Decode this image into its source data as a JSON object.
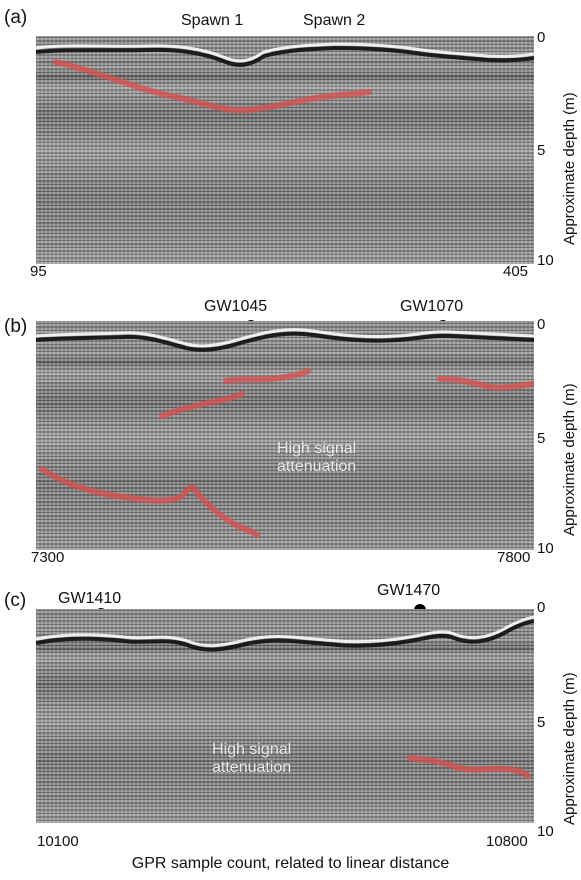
{
  "figure": {
    "panels": [
      {
        "label": "(a)",
        "markers": [
          "Spawn 1",
          "Spawn 2"
        ],
        "x_ticks": [
          "95",
          "405"
        ],
        "depth_ticks": [
          "0",
          "5",
          "10"
        ],
        "depth_axis_title": "Approximate depth (m)",
        "annotations": []
      },
      {
        "label": "(b)",
        "markers": [
          "GW1045",
          "GW1070"
        ],
        "x_ticks": [
          "7300",
          "7800"
        ],
        "depth_ticks": [
          "0",
          "5",
          "10"
        ],
        "depth_axis_title": "Approximate depth (m)",
        "annotations": [
          "High signal",
          "attenuation"
        ]
      },
      {
        "label": "(c)",
        "markers": [
          "GW1410",
          "GW1470"
        ],
        "x_ticks": [
          "10100",
          "10800"
        ],
        "depth_ticks": [
          "0",
          "5",
          "10"
        ],
        "depth_axis_title": "Approximate depth (m)",
        "annotations": [
          "High signal",
          "attenuation"
        ]
      }
    ],
    "x_axis_title": "GPR sample count, related to linear distance",
    "colors": {
      "reflector": "#d94f4f",
      "marker": "#000000"
    }
  }
}
